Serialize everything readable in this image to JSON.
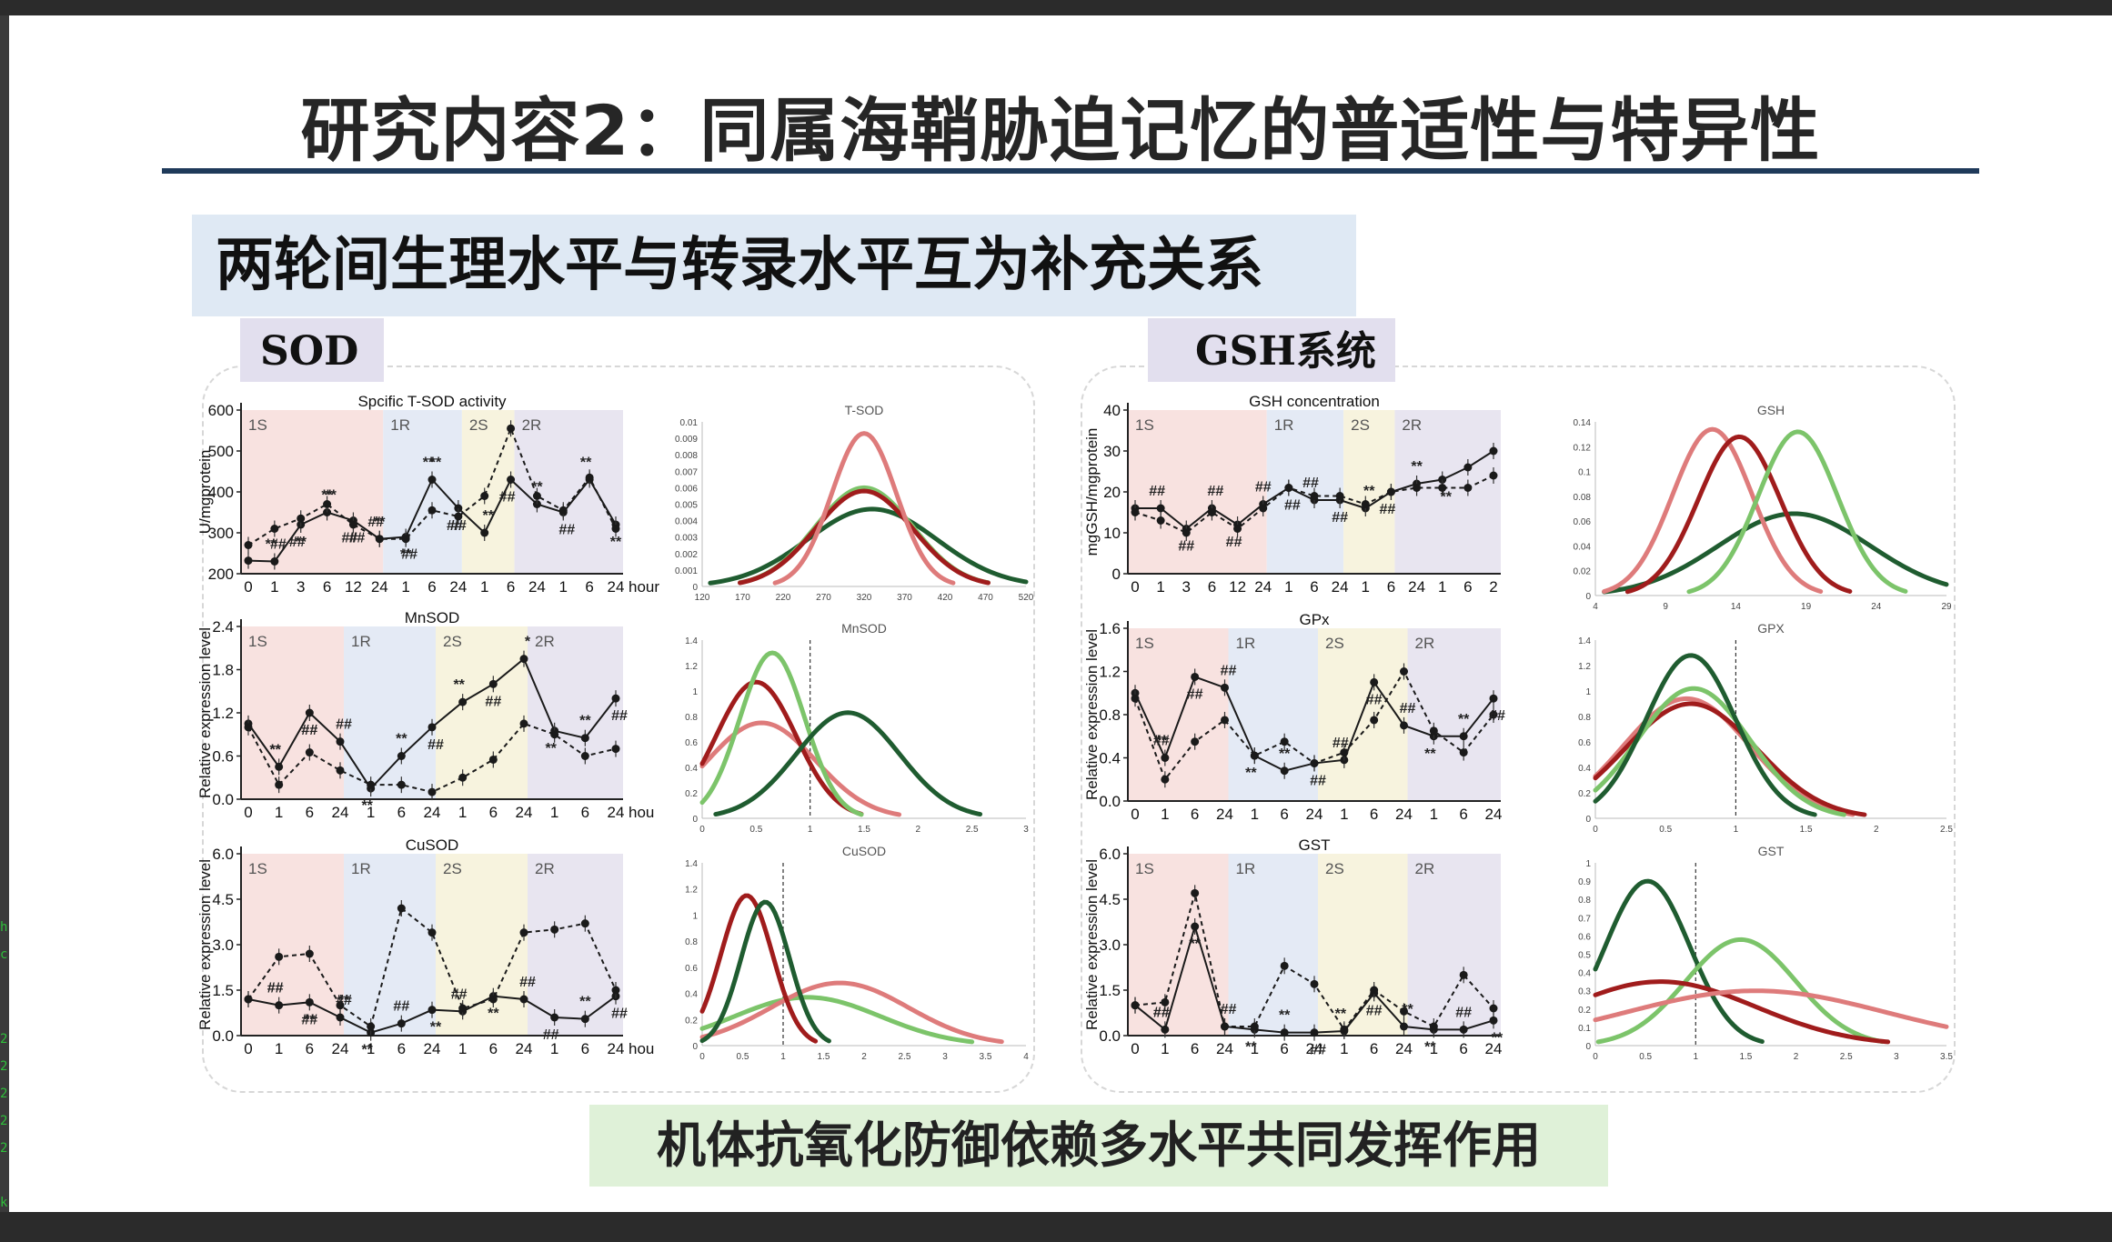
{
  "slide": {
    "title": "研究内容2：同属海鞘胁迫记忆的普适性与特异性",
    "subtitle": "两轮间生理水平与转录水平互为补充关系",
    "sod_tag": "SOD",
    "gsh_tag": "GSH系统",
    "conclusion": "机体抗氧化防御依赖多水平共同发挥作用"
  },
  "left_strip": {
    "chars": [
      "h",
      "c",
      "2",
      "2",
      "2",
      "2",
      "2",
      "k"
    ]
  },
  "colors": {
    "solid_line": "#1a1a1a",
    "stage_1S": "#f8e2e0",
    "stage_1R": "#e4eaf5",
    "stage_2S": "#f7f3de",
    "stage_2R": "#e8e5f0",
    "dark_green": "#1f5c30",
    "light_green": "#7cc46a",
    "dark_red": "#a01c1c",
    "light_red": "#de7b7b"
  },
  "chart_data": [
    {
      "id": "tsod",
      "type": "line",
      "title": "Spcific T-SOD activity",
      "ylabel": "U/mgprotein",
      "ylim": [
        200,
        600
      ],
      "yticks": [
        "600",
        "500",
        "400",
        "300",
        "200"
      ],
      "yvals": [
        600,
        500,
        400,
        300,
        200
      ],
      "xticks": [
        "0",
        "1",
        "3",
        "6",
        "12",
        "24",
        "1",
        "6",
        "24",
        "1",
        "6",
        "24",
        "1",
        "6",
        "24"
      ],
      "xlabel_suffix": "hour",
      "stages": [
        "1S",
        "1R",
        "2S",
        "2R"
      ],
      "stage_bounds": [
        [
          0,
          5
        ],
        [
          5,
          8
        ],
        [
          8,
          10
        ],
        [
          10,
          13
        ]
      ],
      "series": [
        {
          "name": "solid",
          "style": "solid",
          "values": [
            232,
            230,
            320,
            350,
            330,
            285,
            290,
            430,
            360,
            300,
            430,
            370,
            350,
            430,
            320
          ]
        },
        {
          "name": "dashed",
          "style": "dashed",
          "values": [
            270,
            310,
            335,
            370,
            320,
            285,
            285,
            355,
            340,
            390,
            555,
            390,
            355,
            435,
            310
          ]
        }
      ],
      "marks": [
        "**",
        "**",
        "**",
        "##",
        "**",
        "##",
        "**",
        "##",
        "**",
        "##",
        "**",
        "##",
        "**",
        "**",
        "##",
        "##",
        "**",
        "##",
        "##",
        "**",
        "**",
        "##"
      ]
    },
    {
      "id": "mnsod",
      "type": "line",
      "title": "MnSOD",
      "ylabel": "Relative expression level",
      "ylim": [
        0,
        2.4
      ],
      "yticks": [
        "2.4",
        "1.8",
        "1.2",
        "0.6",
        "0.0"
      ],
      "yvals": [
        2.4,
        1.8,
        1.2,
        0.6,
        0.0
      ],
      "xticks": [
        "0",
        "1",
        "6",
        "24",
        "1",
        "6",
        "24",
        "1",
        "6",
        "24",
        "1",
        "6",
        "24"
      ],
      "xlabel_suffix": "hou",
      "stages": [
        "1S",
        "1R",
        "2S",
        "2R"
      ],
      "stage_bounds": [
        [
          0,
          3
        ],
        [
          3,
          6
        ],
        [
          6,
          9
        ],
        [
          9,
          12
        ]
      ],
      "series": [
        {
          "name": "solid",
          "style": "solid",
          "values": [
            1.05,
            0.45,
            1.2,
            0.8,
            0.15,
            0.6,
            1.0,
            1.35,
            1.6,
            1.95,
            0.95,
            0.85,
            1.4
          ]
        },
        {
          "name": "dashed",
          "style": "dashed",
          "values": [
            1.0,
            0.2,
            0.65,
            0.4,
            0.2,
            0.2,
            0.1,
            0.3,
            0.55,
            1.05,
            0.9,
            0.6,
            0.7
          ]
        }
      ],
      "marks": [
        "**",
        "##",
        "##",
        "**",
        "**",
        "##",
        "**",
        "##",
        "*",
        "**",
        "**",
        "##",
        "**",
        "##"
      ]
    },
    {
      "id": "cusod",
      "type": "line",
      "title": "CuSOD",
      "ylabel": "Relative expression level",
      "ylim": [
        0,
        6.0
      ],
      "yticks": [
        "6.0",
        "4.5",
        "3.0",
        "1.5",
        "0.0"
      ],
      "yvals": [
        6.0,
        4.5,
        3.0,
        1.5,
        0.0
      ],
      "xticks": [
        "0",
        "1",
        "6",
        "24",
        "1",
        "6",
        "24",
        "1",
        "6",
        "24",
        "1",
        "6",
        "24"
      ],
      "xlabel_suffix": "hou",
      "stages": [
        "1S",
        "1R",
        "2S",
        "2R"
      ],
      "stage_bounds": [
        [
          0,
          3
        ],
        [
          3,
          6
        ],
        [
          6,
          9
        ],
        [
          9,
          12
        ]
      ],
      "series": [
        {
          "name": "solid",
          "style": "solid",
          "values": [
            1.2,
            1.0,
            1.1,
            0.6,
            0.1,
            0.4,
            0.85,
            0.8,
            1.3,
            1.2,
            0.6,
            0.55,
            1.3
          ]
        },
        {
          "name": "dashed",
          "style": "dashed",
          "values": [
            1.2,
            2.6,
            2.7,
            1.0,
            0.3,
            4.2,
            3.4,
            0.9,
            1.2,
            3.4,
            3.5,
            3.7,
            1.5
          ]
        }
      ],
      "marks": [
        "##",
        "##",
        "**",
        "**",
        "##",
        "**",
        "##",
        "**",
        "##",
        "##",
        "**",
        "##",
        "##",
        "**",
        "##"
      ]
    },
    {
      "id": "gshc",
      "type": "line",
      "title": "GSH concentration",
      "ylabel": "mgGSH/mgprotein",
      "ylim": [
        0,
        40
      ],
      "yticks": [
        "40",
        "30",
        "20",
        "10",
        "0"
      ],
      "yvals": [
        40,
        30,
        20,
        10,
        0
      ],
      "xticks": [
        "0",
        "1",
        "3",
        "6",
        "12",
        "24",
        "1",
        "6",
        "24",
        "1",
        "6",
        "24",
        "1",
        "6",
        "2"
      ],
      "xlabel_suffix": "",
      "stages": [
        "1S",
        "1R",
        "2S",
        "2R"
      ],
      "stage_bounds": [
        [
          0,
          5
        ],
        [
          5,
          8
        ],
        [
          8,
          10
        ],
        [
          10,
          14
        ]
      ],
      "series": [
        {
          "name": "solid",
          "style": "solid",
          "values": [
            16,
            16,
            11,
            16,
            12,
            17,
            21,
            18,
            18,
            16,
            20,
            22,
            23,
            26,
            30
          ]
        },
        {
          "name": "dashed",
          "style": "dashed",
          "values": [
            15,
            13,
            10,
            15,
            11,
            16,
            21,
            19,
            19,
            17,
            20,
            21,
            21,
            21,
            24
          ]
        }
      ],
      "marks": [
        "##",
        "##",
        "##",
        "##",
        "##",
        "##",
        "##",
        "##",
        "**",
        "##",
        "**",
        "**"
      ]
    },
    {
      "id": "gpx",
      "type": "line",
      "title": "GPx",
      "ylabel": "Relative expression level",
      "ylim": [
        0,
        1.6
      ],
      "yticks": [
        "1.6",
        "1.2",
        "0.8",
        "0.4",
        "0.0"
      ],
      "yvals": [
        1.6,
        1.2,
        0.8,
        0.4,
        0.0
      ],
      "xticks": [
        "0",
        "1",
        "6",
        "24",
        "1",
        "6",
        "24",
        "1",
        "6",
        "24",
        "1",
        "6",
        "24"
      ],
      "xlabel_suffix": "",
      "stages": [
        "1S",
        "1R",
        "2S",
        "2R"
      ],
      "stage_bounds": [
        [
          0,
          3
        ],
        [
          3,
          6
        ],
        [
          6,
          9
        ],
        [
          9,
          12
        ]
      ],
      "series": [
        {
          "name": "solid",
          "style": "solid",
          "values": [
            1.0,
            0.4,
            1.15,
            1.05,
            0.42,
            0.28,
            0.35,
            0.38,
            1.1,
            0.7,
            0.6,
            0.6,
            0.95
          ]
        },
        {
          "name": "dashed",
          "style": "dashed",
          "values": [
            0.95,
            0.2,
            0.55,
            0.75,
            0.42,
            0.55,
            0.35,
            0.45,
            0.75,
            1.2,
            0.65,
            0.45,
            0.8
          ]
        }
      ],
      "marks": [
        "**",
        "##",
        "##",
        "**",
        "**",
        "##",
        "##",
        "##",
        "##",
        "**",
        "**",
        "##",
        "##"
      ]
    },
    {
      "id": "gst",
      "type": "line",
      "title": "GST",
      "ylabel": "Relative expression level",
      "ylim": [
        0,
        6.0
      ],
      "yticks": [
        "6.0",
        "4.5",
        "3.0",
        "1.5",
        "0.0"
      ],
      "yvals": [
        6.0,
        4.5,
        3.0,
        1.5,
        0.0
      ],
      "xticks": [
        "0",
        "1",
        "6",
        "24",
        "1",
        "6",
        "24",
        "1",
        "6",
        "24",
        "1",
        "6",
        "24"
      ],
      "xlabel_suffix": "",
      "stages": [
        "1S",
        "1R",
        "2S",
        "2R"
      ],
      "stage_bounds": [
        [
          0,
          3
        ],
        [
          3,
          6
        ],
        [
          6,
          9
        ],
        [
          9,
          12
        ]
      ],
      "series": [
        {
          "name": "solid",
          "style": "solid",
          "values": [
            1.0,
            0.2,
            3.6,
            0.3,
            0.2,
            0.1,
            0.1,
            0.15,
            1.4,
            0.3,
            0.2,
            0.2,
            0.5
          ]
        },
        {
          "name": "dashed",
          "style": "dashed",
          "values": [
            1.0,
            1.1,
            4.7,
            0.3,
            0.3,
            2.3,
            1.7,
            0.2,
            1.5,
            0.8,
            0.3,
            2.0,
            0.9
          ]
        }
      ],
      "marks": [
        "##",
        "**",
        "##",
        "**",
        "**",
        "##",
        "**",
        "##",
        "**",
        "**",
        "##",
        "**",
        "##",
        "**"
      ]
    },
    {
      "id": "d_tsod",
      "type": "area",
      "title": "T-SOD",
      "xlim": [
        120,
        520
      ],
      "xticks": [
        "120",
        "170",
        "220",
        "270",
        "320",
        "370",
        "420",
        "470",
        "520"
      ],
      "yticks": [
        "0.01",
        "0.009",
        "0.008",
        "0.007",
        "0.006",
        "0.005",
        "0.004",
        "0.003",
        "0.002",
        "0.001",
        "0"
      ],
      "ymax": 0.01,
      "vline": null,
      "curves": [
        {
          "color": "dark_green",
          "mu": 330,
          "sd": 80,
          "peak": 0.0047
        },
        {
          "color": "light_green",
          "mu": 320,
          "sd": 60,
          "peak": 0.006
        },
        {
          "color": "dark_red",
          "mu": 320,
          "sd": 60,
          "peak": 0.0058
        },
        {
          "color": "light_red",
          "mu": 320,
          "sd": 40,
          "peak": 0.0093
        }
      ]
    },
    {
      "id": "d_mnsod",
      "type": "area",
      "title": "MnSOD",
      "xlim": [
        0,
        3
      ],
      "xticks": [
        "0",
        "0.5",
        "1",
        "1.5",
        "2",
        "2.5",
        "3"
      ],
      "yticks": [
        "1.4",
        "1.2",
        "1",
        "0.8",
        "0.6",
        "0.4",
        "0.2",
        "0"
      ],
      "ymax": 1.4,
      "vline": 1.0,
      "curves": [
        {
          "color": "light_red",
          "mu": 0.55,
          "sd": 0.5,
          "peak": 0.75
        },
        {
          "color": "dark_red",
          "mu": 0.5,
          "sd": 0.37,
          "peak": 1.07
        },
        {
          "color": "light_green",
          "mu": 0.65,
          "sd": 0.3,
          "peak": 1.3
        },
        {
          "color": "dark_green",
          "mu": 1.35,
          "sd": 0.48,
          "peak": 0.83
        }
      ]
    },
    {
      "id": "d_cusod",
      "type": "area",
      "title": "CuSOD",
      "xlim": [
        0,
        4
      ],
      "xticks": [
        "0",
        "0.5",
        "1",
        "1.5",
        "2",
        "2.5",
        "3",
        "3.5",
        "4"
      ],
      "yticks": [
        "1.4",
        "1.2",
        "1",
        "0.8",
        "0.6",
        "0.4",
        "0.2",
        "0"
      ],
      "ymax": 1.4,
      "vline": 1.0,
      "curves": [
        {
          "color": "light_green",
          "mu": 1.3,
          "sd": 0.9,
          "peak": 0.37
        },
        {
          "color": "light_red",
          "mu": 1.7,
          "sd": 0.85,
          "peak": 0.48
        },
        {
          "color": "dark_red",
          "mu": 0.55,
          "sd": 0.32,
          "peak": 1.15
        },
        {
          "color": "dark_green",
          "mu": 0.78,
          "sd": 0.3,
          "peak": 1.1
        }
      ]
    },
    {
      "id": "d_gsh",
      "type": "area",
      "title": "GSH",
      "xlim": [
        4,
        34
      ],
      "xticks": [
        "4",
        "9",
        "14",
        "19",
        "24",
        "29"
      ],
      "yticks": [
        "0.14",
        "0.12",
        "0.1",
        "0.08",
        "0.06",
        "0.04",
        "0.02",
        "0"
      ],
      "ymax": 0.14,
      "vline": null,
      "curves": [
        {
          "color": "dark_green",
          "mu": 21,
          "sd": 6.5,
          "peak": 0.066
        },
        {
          "color": "light_red",
          "mu": 14,
          "sd": 3.4,
          "peak": 0.134
        },
        {
          "color": "dark_red",
          "mu": 16.3,
          "sd": 3.5,
          "peak": 0.128
        },
        {
          "color": "light_green",
          "mu": 21.3,
          "sd": 3.4,
          "peak": 0.132
        }
      ]
    },
    {
      "id": "d_gpx",
      "type": "area",
      "title": "GPX",
      "xlim": [
        0,
        2.5
      ],
      "xticks": [
        "0",
        "0.5",
        "1",
        "1.5",
        "2",
        "2.5"
      ],
      "yticks": [
        "1.4",
        "1.2",
        "1",
        "0.8",
        "0.6",
        "0.4",
        "0.2",
        "0"
      ],
      "ymax": 1.4,
      "vline": 1.0,
      "curves": [
        {
          "color": "light_red",
          "mu": 0.65,
          "sd": 0.45,
          "peak": 0.94
        },
        {
          "color": "dark_red",
          "mu": 0.68,
          "sd": 0.47,
          "peak": 0.9
        },
        {
          "color": "light_green",
          "mu": 0.7,
          "sd": 0.4,
          "peak": 1.02
        },
        {
          "color": "dark_green",
          "mu": 0.68,
          "sd": 0.32,
          "peak": 1.28
        }
      ]
    },
    {
      "id": "d_gst",
      "type": "area",
      "title": "GST",
      "xlim": [
        0,
        3.5
      ],
      "xticks": [
        "0",
        "0.5",
        "1",
        "1.5",
        "2",
        "2.5",
        "3",
        "3.5"
      ],
      "yticks": [
        "1",
        "0.9",
        "0.8",
        "0.7",
        "0.6",
        "0.5",
        "0.4",
        "0.3",
        "0.2",
        "0.1",
        "0"
      ],
      "ymax": 1.0,
      "vline": 1.0,
      "curves": [
        {
          "color": "dark_green",
          "mu": 0.52,
          "sd": 0.42,
          "peak": 0.9
        },
        {
          "color": "light_green",
          "mu": 1.45,
          "sd": 0.55,
          "peak": 0.58
        },
        {
          "color": "dark_red",
          "mu": 0.65,
          "sd": 0.95,
          "peak": 0.35
        },
        {
          "color": "light_red",
          "mu": 1.6,
          "sd": 1.3,
          "peak": 0.3
        }
      ]
    }
  ]
}
